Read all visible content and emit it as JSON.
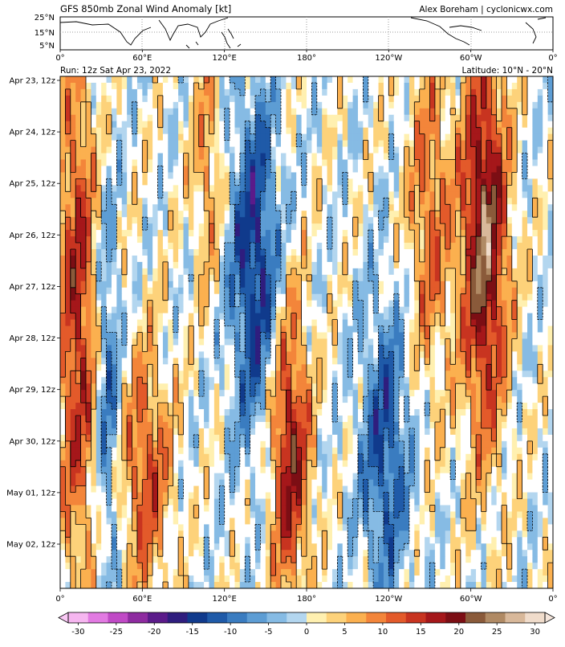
{
  "header": {
    "title": "GFS 850mb Zonal Wind Anomaly [kt]",
    "credit": "Alex Boreham | cyclonicwx.com",
    "run": "Run: 12z Sat Apr 23, 2022",
    "latitude": "Latitude: 10°N - 20°N"
  },
  "map": {
    "lat_ticks": [
      "25°N",
      "15°N",
      "5°N"
    ],
    "lon_ticks": [
      "0°",
      "60°E",
      "120°E",
      "180°",
      "120°W",
      "60°W",
      "0°"
    ]
  },
  "chart_data": {
    "type": "heatmap",
    "x_axis": {
      "ticks": [
        "0°",
        "60°E",
        "120°E",
        "180°",
        "120°W",
        "60°W",
        "0°"
      ],
      "range_deg_east": [
        0,
        360
      ]
    },
    "y_axis": {
      "ticks": [
        "Apr 23, 12z",
        "Apr 24, 12z",
        "Apr 25, 12z",
        "Apr 26, 12z",
        "Apr 27, 12z",
        "Apr 28, 12z",
        "Apr 29, 12z",
        "Apr 30, 12z",
        "May 01, 12z",
        "May 02, 12z"
      ],
      "direction": "time increases downward"
    },
    "colorbar": {
      "ticks": [
        "-30",
        "-25",
        "-20",
        "-15",
        "-10",
        "-5",
        "0",
        "5",
        "10",
        "15",
        "20",
        "25",
        "30"
      ],
      "range": [
        -30,
        30
      ],
      "extend": "both"
    },
    "contour_levels": [
      -10,
      -5,
      5,
      10,
      15,
      20
    ],
    "features": [
      {
        "lon_range": [
          0,
          25
        ],
        "time_range": [
          "Apr 23, 12z",
          "May 02, 12z"
        ],
        "anomaly": 15
      },
      {
        "lon_range": [
          30,
          40
        ],
        "time_range": [
          "Apr 26, 12z",
          "May 02, 12z"
        ],
        "anomaly": -10
      },
      {
        "lon_range": [
          45,
          80
        ],
        "time_range": [
          "Apr 29, 12z",
          "May 02, 12z"
        ],
        "anomaly": 12
      },
      {
        "lon_range": [
          100,
          115
        ],
        "time_range": [
          "Apr 23, 12z",
          "Apr 26, 12z"
        ],
        "anomaly": 8
      },
      {
        "lon_range": [
          125,
          160
        ],
        "time_range": [
          "Apr 24, 12z",
          "Apr 29, 12z"
        ],
        "anomaly": -15
      },
      {
        "lon_range": [
          155,
          180
        ],
        "time_range": [
          "Apr 28, 12z",
          "May 02, 12z"
        ],
        "anomaly": 18
      },
      {
        "lon_range": [
          220,
          255
        ],
        "time_range": [
          "Apr 28, 12z",
          "May 02, 12z"
        ],
        "anomaly": -12
      },
      {
        "lon_range": [
          255,
          285
        ],
        "time_range": [
          "Apr 23, 12z",
          "Apr 28, 12z"
        ],
        "anomaly": 10
      },
      {
        "lon_range": [
          295,
          325
        ],
        "time_range": [
          "Apr 23, 12z",
          "Apr 29, 12z"
        ],
        "anomaly": 22
      }
    ]
  }
}
